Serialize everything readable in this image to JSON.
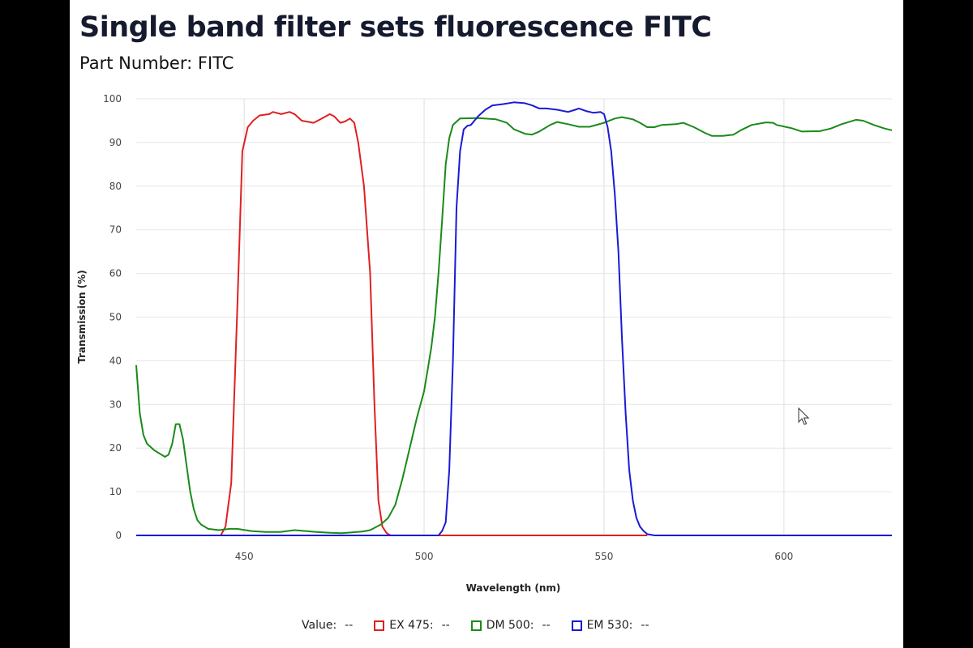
{
  "title": "Single band filter sets fluorescence FITC",
  "part_number_label": "Part Number:",
  "part_number": "FITC",
  "legend": {
    "value_label": "Value:",
    "value": "--",
    "items": [
      {
        "label": "EX 475:",
        "value": "--",
        "color": "#e02020"
      },
      {
        "label": "DM 500:",
        "value": "--",
        "color": "#1a8a1a"
      },
      {
        "label": "EM 530:",
        "value": "--",
        "color": "#1a1ad8"
      }
    ]
  },
  "chart_data": {
    "type": "line",
    "xlabel": "Wavelength (nm)",
    "ylabel": "Transmission (%)",
    "xlim": [
      420,
      630
    ],
    "ylim": [
      0,
      100
    ],
    "xticks": [
      450,
      500,
      550,
      600
    ],
    "yticks": [
      0,
      10,
      20,
      30,
      40,
      50,
      60,
      70,
      80,
      90,
      100
    ],
    "grid": true,
    "legend_placement": "bottom",
    "series": [
      {
        "name": "EX 475",
        "color": "#e02020",
        "points": [
          [
            420,
            0
          ],
          [
            443.5,
            0
          ],
          [
            444.8,
            2
          ],
          [
            446.4,
            12
          ],
          [
            448,
            50
          ],
          [
            449.5,
            88
          ],
          [
            451,
            93.5
          ],
          [
            452.5,
            95
          ],
          [
            454.3,
            96.2
          ],
          [
            457,
            96.5
          ],
          [
            458,
            97
          ],
          [
            460.3,
            96.5
          ],
          [
            462.6,
            97
          ],
          [
            464,
            96.5
          ],
          [
            466,
            95
          ],
          [
            469.3,
            94.5
          ],
          [
            471.6,
            95.5
          ],
          [
            473.8,
            96.5
          ],
          [
            475,
            96
          ],
          [
            476.7,
            94.5
          ],
          [
            478,
            94.8
          ],
          [
            479.4,
            95.5
          ],
          [
            480.6,
            94.5
          ],
          [
            481.7,
            90
          ],
          [
            483.3,
            80
          ],
          [
            485,
            60
          ],
          [
            486.2,
            30
          ],
          [
            487.3,
            8
          ],
          [
            488.4,
            2
          ],
          [
            489.6,
            0.5
          ],
          [
            490.7,
            0
          ],
          [
            562,
            0
          ]
        ]
      },
      {
        "name": "DM 500",
        "color": "#1a8a1a",
        "points": [
          [
            420,
            39
          ],
          [
            421,
            28
          ],
          [
            422,
            23
          ],
          [
            423,
            21
          ],
          [
            425,
            19.5
          ],
          [
            427,
            18.5
          ],
          [
            428,
            18
          ],
          [
            429,
            18.5
          ],
          [
            430,
            21
          ],
          [
            431,
            25.5
          ],
          [
            432,
            25.5
          ],
          [
            433,
            22
          ],
          [
            434,
            16
          ],
          [
            435,
            10
          ],
          [
            436,
            6
          ],
          [
            437,
            3.5
          ],
          [
            438,
            2.5
          ],
          [
            440,
            1.5
          ],
          [
            443,
            1.2
          ],
          [
            446,
            1.5
          ],
          [
            448,
            1.5
          ],
          [
            452,
            1
          ],
          [
            456,
            0.8
          ],
          [
            460,
            0.8
          ],
          [
            464,
            1.2
          ],
          [
            467,
            1
          ],
          [
            470,
            0.8
          ],
          [
            474,
            0.6
          ],
          [
            477,
            0.5
          ],
          [
            480,
            0.7
          ],
          [
            483,
            0.9
          ],
          [
            485,
            1.2
          ],
          [
            488,
            2.5
          ],
          [
            490,
            4
          ],
          [
            492,
            7
          ],
          [
            494,
            13
          ],
          [
            496,
            20
          ],
          [
            498,
            27
          ],
          [
            500,
            33
          ],
          [
            501,
            38
          ],
          [
            502,
            43
          ],
          [
            503,
            50
          ],
          [
            504,
            60
          ],
          [
            505,
            72
          ],
          [
            506,
            85
          ],
          [
            507,
            91
          ],
          [
            508,
            94
          ],
          [
            510,
            95.5
          ],
          [
            515,
            95.6
          ],
          [
            520,
            95.3
          ],
          [
            523,
            94.5
          ],
          [
            525,
            93
          ],
          [
            528,
            92
          ],
          [
            530,
            91.8
          ],
          [
            532,
            92.5
          ],
          [
            535,
            94
          ],
          [
            537,
            94.7
          ],
          [
            540,
            94.2
          ],
          [
            543,
            93.6
          ],
          [
            546,
            93.6
          ],
          [
            550,
            94.5
          ],
          [
            553,
            95.5
          ],
          [
            555,
            95.8
          ],
          [
            558,
            95.3
          ],
          [
            560,
            94.5
          ],
          [
            562,
            93.5
          ],
          [
            564,
            93.5
          ],
          [
            566,
            94
          ],
          [
            570,
            94.2
          ],
          [
            572,
            94.5
          ],
          [
            575,
            93.5
          ],
          [
            578,
            92.2
          ],
          [
            580,
            91.5
          ],
          [
            583,
            91.5
          ],
          [
            586,
            91.8
          ],
          [
            588,
            92.8
          ],
          [
            591,
            94
          ],
          [
            595,
            94.6
          ],
          [
            597,
            94.5
          ],
          [
            598,
            94
          ],
          [
            602,
            93.3
          ],
          [
            605,
            92.5
          ],
          [
            610,
            92.6
          ],
          [
            613,
            93.2
          ],
          [
            616,
            94.2
          ],
          [
            620,
            95.2
          ],
          [
            622,
            95
          ],
          [
            625,
            94
          ],
          [
            628,
            93.2
          ],
          [
            630,
            92.8
          ]
        ]
      },
      {
        "name": "EM 530",
        "color": "#1a1ad8",
        "points": [
          [
            420,
            0
          ],
          [
            504,
            0
          ],
          [
            505,
            1
          ],
          [
            506,
            3
          ],
          [
            507,
            15
          ],
          [
            508,
            40
          ],
          [
            509,
            75
          ],
          [
            510,
            88
          ],
          [
            511,
            93
          ],
          [
            512,
            93.8
          ],
          [
            513,
            94
          ],
          [
            515,
            96
          ],
          [
            517,
            97.5
          ],
          [
            519,
            98.5
          ],
          [
            522,
            98.8
          ],
          [
            525,
            99.2
          ],
          [
            528,
            99
          ],
          [
            530,
            98.5
          ],
          [
            532,
            97.8
          ],
          [
            534,
            97.8
          ],
          [
            537,
            97.5
          ],
          [
            540,
            97
          ],
          [
            542,
            97.5
          ],
          [
            543,
            97.8
          ],
          [
            545,
            97.2
          ],
          [
            547,
            96.8
          ],
          [
            549,
            97
          ],
          [
            550,
            96.5
          ],
          [
            551,
            93.5
          ],
          [
            552,
            88
          ],
          [
            553,
            78
          ],
          [
            554,
            65
          ],
          [
            555,
            45
          ],
          [
            556,
            28
          ],
          [
            557,
            15
          ],
          [
            558,
            8
          ],
          [
            559,
            4
          ],
          [
            560,
            2
          ],
          [
            561,
            1
          ],
          [
            562,
            0.3
          ],
          [
            564,
            0
          ],
          [
            630,
            0
          ]
        ]
      }
    ]
  }
}
